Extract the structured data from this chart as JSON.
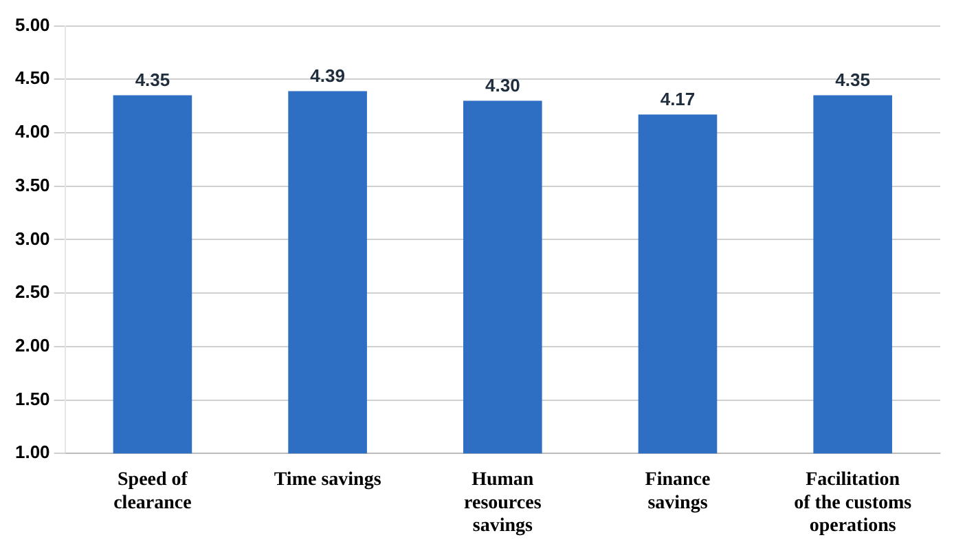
{
  "chart_data": {
    "type": "bar",
    "categories": [
      "Speed of clearance",
      "Time savings",
      "Human resources savings",
      "Finance savings",
      "Facilitation of the customs operations"
    ],
    "values": [
      4.35,
      4.39,
      4.3,
      4.17,
      4.35
    ],
    "color": "#2e6fc4",
    "data_labels": true,
    "value_labels": [
      "4.35",
      "4.39",
      "4.30",
      "4.17",
      "4.35"
    ],
    "ylim": [
      1,
      5
    ],
    "yticks": [
      {
        "value": 1,
        "label": "1.00"
      },
      {
        "value": 1.5,
        "label": "1.50"
      },
      {
        "value": 2,
        "label": "2.00"
      },
      {
        "value": 2.5,
        "label": "2.50"
      },
      {
        "value": 3,
        "label": "3.00"
      },
      {
        "value": 3.5,
        "label": "3.50"
      },
      {
        "value": 4,
        "label": "4.00"
      },
      {
        "value": 4.5,
        "label": "4.50"
      },
      {
        "value": 5,
        "label": "5.00"
      }
    ],
    "grid": "y"
  }
}
